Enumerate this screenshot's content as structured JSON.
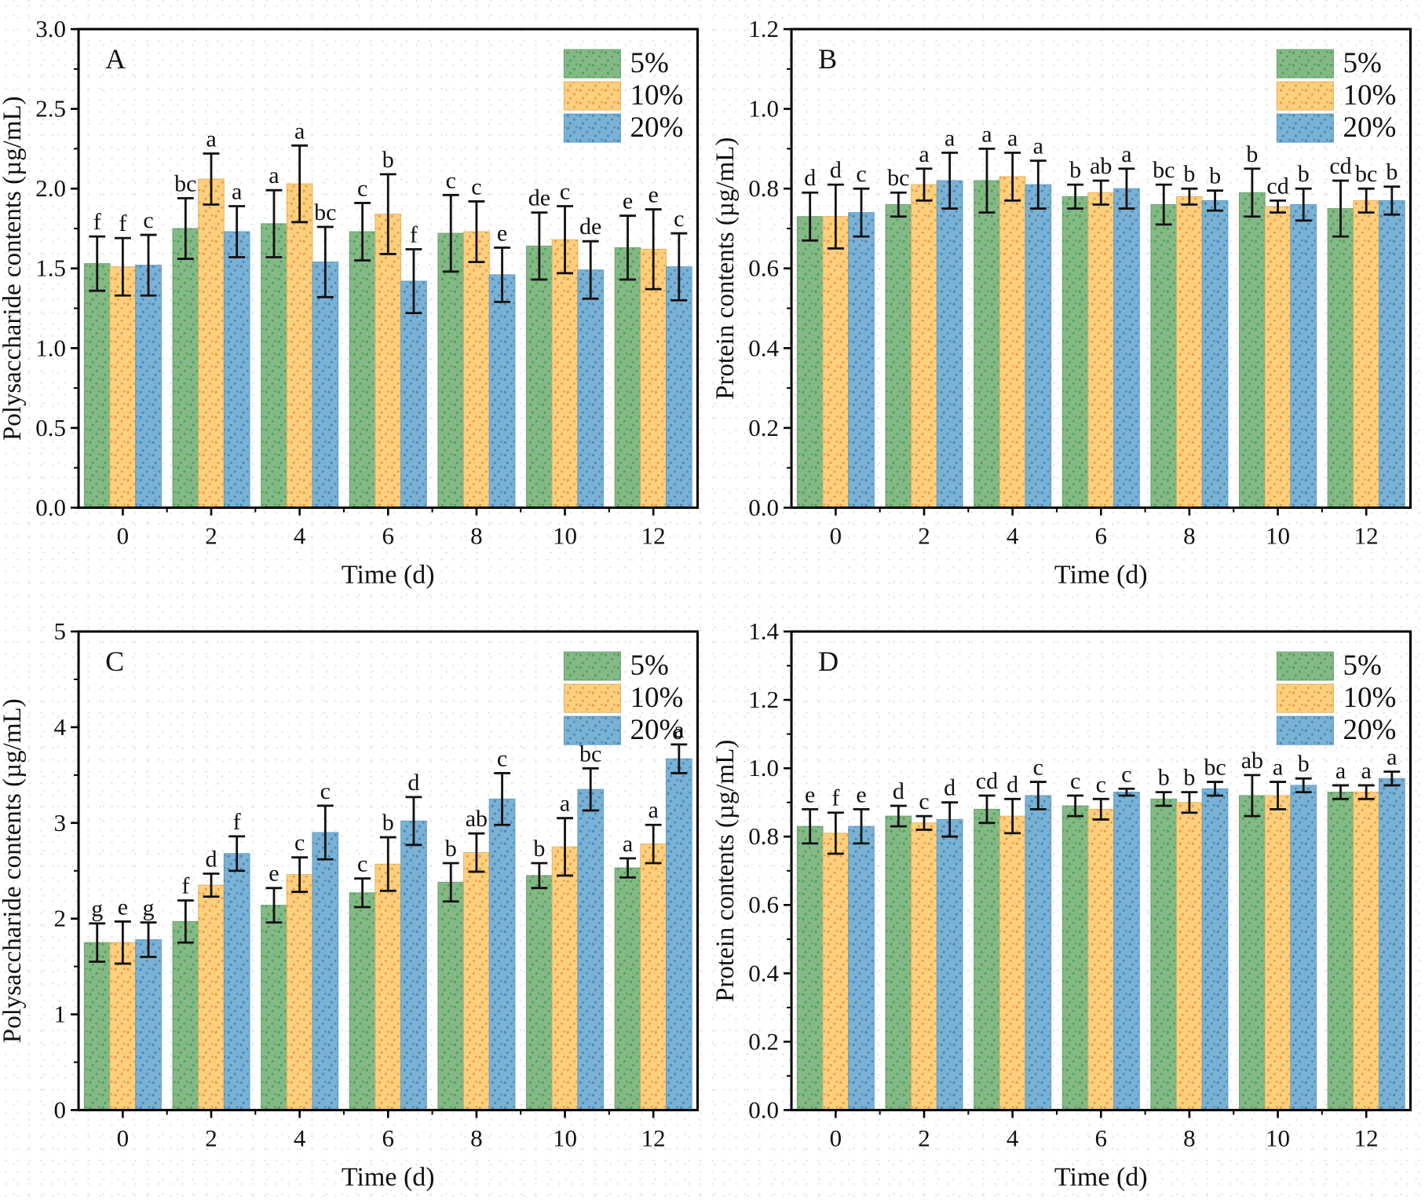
{
  "figure_title": "",
  "legend_labels": [
    "5%",
    "10%",
    "20%"
  ],
  "colors": {
    "green": {
      "base": "#85b887",
      "dot": "#46a44a",
      "edge": "#6da270"
    },
    "yellow": {
      "base": "#fcd07e",
      "dot": "#f2953d",
      "edge": "#e5b35f"
    },
    "blue": {
      "base": "#7bb1d3",
      "dot": "#3e88c0",
      "edge": "#639ec2"
    }
  },
  "axis_color": "#000000",
  "chart_data": [
    {
      "panel": "A",
      "type": "bar",
      "title_letter": "A",
      "xlabel": "Time (d)",
      "ylabel": "Polysaccharide contents (µg/mL)",
      "ylim": [
        0,
        3.0
      ],
      "ytick_step": 0.5,
      "ytick_decimals": 1,
      "grid": false,
      "legend_position": "top-right",
      "categories": [
        "0",
        "2",
        "4",
        "6",
        "8",
        "10",
        "12"
      ],
      "series": [
        {
          "name": "5%",
          "color_key": "green",
          "values": [
            1.53,
            1.75,
            1.78,
            1.73,
            1.72,
            1.64,
            1.63
          ],
          "errors": [
            0.17,
            0.19,
            0.21,
            0.18,
            0.24,
            0.21,
            0.2
          ],
          "sig_letters": [
            "f",
            "bc",
            "a",
            "c",
            "c",
            "de",
            "e"
          ]
        },
        {
          "name": "10%",
          "color_key": "yellow",
          "values": [
            1.51,
            2.06,
            2.03,
            1.84,
            1.73,
            1.68,
            1.62
          ],
          "errors": [
            0.18,
            0.16,
            0.24,
            0.25,
            0.19,
            0.21,
            0.25
          ],
          "sig_letters": [
            "f",
            "a",
            "a",
            "b",
            "c",
            "c",
            "e"
          ]
        },
        {
          "name": "20%",
          "color_key": "blue",
          "values": [
            1.52,
            1.73,
            1.54,
            1.42,
            1.46,
            1.49,
            1.51
          ],
          "errors": [
            0.19,
            0.16,
            0.22,
            0.2,
            0.17,
            0.18,
            0.21
          ],
          "sig_letters": [
            "c",
            "a",
            "bc",
            "f",
            "e",
            "de",
            "c"
          ]
        }
      ]
    },
    {
      "panel": "B",
      "type": "bar",
      "title_letter": "B",
      "xlabel": "Time (d)",
      "ylabel": "Protein contents (µg/mL)",
      "ylim": [
        0,
        1.2
      ],
      "ytick_step": 0.2,
      "ytick_decimals": 1,
      "grid": false,
      "legend_position": "top-right",
      "categories": [
        "0",
        "2",
        "4",
        "6",
        "8",
        "10",
        "12"
      ],
      "series": [
        {
          "name": "5%",
          "color_key": "green",
          "values": [
            0.73,
            0.76,
            0.82,
            0.78,
            0.76,
            0.79,
            0.75
          ],
          "errors": [
            0.06,
            0.03,
            0.08,
            0.03,
            0.05,
            0.06,
            0.07
          ],
          "sig_letters": [
            "d",
            "bc",
            "a",
            "b",
            "bc",
            "b",
            "cd"
          ]
        },
        {
          "name": "10%",
          "color_key": "yellow",
          "values": [
            0.73,
            0.81,
            0.83,
            0.79,
            0.78,
            0.755,
            0.77
          ],
          "errors": [
            0.08,
            0.04,
            0.06,
            0.03,
            0.02,
            0.015,
            0.03
          ],
          "sig_letters": [
            "d",
            "a",
            "a",
            "ab",
            "b",
            "cd",
            "bc"
          ]
        },
        {
          "name": "20%",
          "color_key": "blue",
          "values": [
            0.74,
            0.82,
            0.81,
            0.8,
            0.77,
            0.76,
            0.77
          ],
          "errors": [
            0.06,
            0.07,
            0.06,
            0.05,
            0.025,
            0.04,
            0.035
          ],
          "sig_letters": [
            "c",
            "a",
            "a",
            "a",
            "b",
            "b",
            "b"
          ]
        }
      ]
    },
    {
      "panel": "C",
      "type": "bar",
      "title_letter": "C",
      "xlabel": "Time (d)",
      "ylabel": "Polysaccharide contents (µg/mL)",
      "ylim": [
        0,
        5
      ],
      "ytick_step": 1,
      "ytick_decimals": 0,
      "grid": false,
      "legend_position": "top-right",
      "categories": [
        "0",
        "2",
        "4",
        "6",
        "8",
        "10",
        "12"
      ],
      "series": [
        {
          "name": "5%",
          "color_key": "green",
          "values": [
            1.75,
            1.97,
            2.14,
            2.27,
            2.38,
            2.45,
            2.53
          ],
          "errors": [
            0.2,
            0.22,
            0.18,
            0.15,
            0.2,
            0.13,
            0.1
          ],
          "sig_letters": [
            "g",
            "f",
            "e",
            "c",
            "b",
            "b",
            "a"
          ]
        },
        {
          "name": "10%",
          "color_key": "yellow",
          "values": [
            1.75,
            2.35,
            2.46,
            2.57,
            2.69,
            2.75,
            2.78
          ],
          "errors": [
            0.22,
            0.12,
            0.18,
            0.28,
            0.2,
            0.3,
            0.2
          ],
          "sig_letters": [
            "e",
            "d",
            "c",
            "b",
            "ab",
            "a",
            "a"
          ]
        },
        {
          "name": "20%",
          "color_key": "blue",
          "values": [
            1.78,
            2.68,
            2.9,
            3.02,
            3.25,
            3.35,
            3.67
          ],
          "errors": [
            0.18,
            0.18,
            0.28,
            0.25,
            0.27,
            0.22,
            0.15
          ],
          "sig_letters": [
            "g",
            "f",
            "c",
            "d",
            "c",
            "bc",
            "a"
          ]
        }
      ]
    },
    {
      "panel": "D",
      "type": "bar",
      "title_letter": "D",
      "xlabel": "Time (d)",
      "ylabel": "Protein contents (µg/mL)",
      "ylim": [
        0,
        1.4
      ],
      "ytick_step": 0.2,
      "ytick_decimals": 1,
      "grid": false,
      "legend_position": "top-right",
      "categories": [
        "0",
        "2",
        "4",
        "6",
        "8",
        "10",
        "12"
      ],
      "series": [
        {
          "name": "5%",
          "color_key": "green",
          "values": [
            0.83,
            0.86,
            0.88,
            0.89,
            0.91,
            0.92,
            0.93
          ],
          "errors": [
            0.05,
            0.03,
            0.04,
            0.03,
            0.02,
            0.06,
            0.02
          ],
          "sig_letters": [
            "e",
            "d",
            "cd",
            "c",
            "b",
            "ab",
            "a"
          ]
        },
        {
          "name": "10%",
          "color_key": "yellow",
          "values": [
            0.81,
            0.84,
            0.86,
            0.88,
            0.9,
            0.92,
            0.93
          ],
          "errors": [
            0.06,
            0.02,
            0.05,
            0.03,
            0.03,
            0.04,
            0.02
          ],
          "sig_letters": [
            "f",
            "c",
            "d",
            "c",
            "b",
            "a",
            "a"
          ]
        },
        {
          "name": "20%",
          "color_key": "blue",
          "values": [
            0.83,
            0.85,
            0.92,
            0.93,
            0.94,
            0.95,
            0.97
          ],
          "errors": [
            0.05,
            0.05,
            0.04,
            0.01,
            0.02,
            0.02,
            0.02
          ],
          "sig_letters": [
            "e",
            "d",
            "c",
            "c",
            "bc",
            "b",
            "a"
          ]
        }
      ]
    }
  ]
}
